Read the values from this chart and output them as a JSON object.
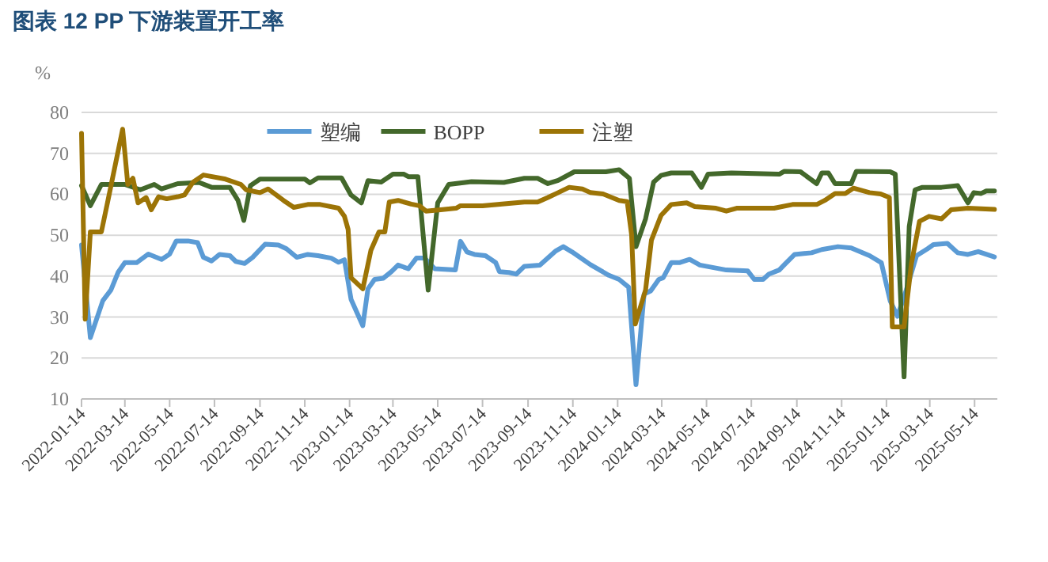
{
  "chart_data": {
    "type": "line",
    "title": "图表 12 PP 下游装置开工率",
    "ylabel": "%",
    "xlim": [
      "2022-01-14",
      "2025-06-14"
    ],
    "ylim": [
      10,
      80
    ],
    "yticks": [
      10,
      20,
      30,
      40,
      50,
      60,
      70,
      80
    ],
    "xticks": [
      {
        "value": "2022-01-14",
        "label": "2022-01-14"
      },
      {
        "value": "2022-03-14",
        "label": "2022-03-14"
      },
      {
        "value": "2022-05-14",
        "label": "2022-05-14"
      },
      {
        "value": "2022-07-14",
        "label": "2022-07-14"
      },
      {
        "value": "2022-09-14",
        "label": "2022-09-14"
      },
      {
        "value": "2022-11-14",
        "label": "2022-11-14"
      },
      {
        "value": "2023-01-14",
        "label": "2023-01-14"
      },
      {
        "value": "2023-03-14",
        "label": "2023-03-14"
      },
      {
        "value": "2023-05-14",
        "label": "2023-05-14"
      },
      {
        "value": "2023-07-14",
        "label": "2023-07-14"
      },
      {
        "value": "2023-09-14",
        "label": "2023-09-14"
      },
      {
        "value": "2023-11-14",
        "label": "2023-11-14"
      },
      {
        "value": "2024-01-14",
        "label": "2024-01-14"
      },
      {
        "value": "2024-03-14",
        "label": "2024-03-14"
      },
      {
        "value": "2024-05-14",
        "label": "2024-05-14"
      },
      {
        "value": "2024-07-14",
        "label": "2024-07-14"
      },
      {
        "value": "2024-09-14",
        "label": "2024-09-14"
      },
      {
        "value": "2024-11-14",
        "label": "2024-11-14"
      },
      {
        "value": "2025-01-14",
        "label": "2025-01-14"
      },
      {
        "value": "2025-03-14",
        "label": "2025-03-14"
      },
      {
        "value": "2025-05-14",
        "label": "2025-05-14"
      }
    ],
    "grid": "y",
    "legend": "top",
    "line_style": "solid",
    "series": [
      {
        "name": "塑编",
        "color": "#5b9bd5",
        "x": [
          "2022-01-14",
          "2022-01-26",
          "2022-02-12",
          "2022-02-23",
          "2022-03-05",
          "2022-03-14",
          "2022-03-30",
          "2022-04-15",
          "2022-05-03",
          "2022-05-14",
          "2022-05-23",
          "2022-06-08",
          "2022-06-21",
          "2022-06-29",
          "2022-07-10",
          "2022-07-21",
          "2022-08-04",
          "2022-08-12",
          "2022-08-24",
          "2022-09-04",
          "2022-09-21",
          "2022-10-09",
          "2022-10-20",
          "2022-11-03",
          "2022-11-18",
          "2022-12-02",
          "2022-12-20",
          "2022-12-30",
          "2023-01-07",
          "2023-01-16",
          "2023-02-01",
          "2023-02-08",
          "2023-02-17",
          "2023-03-01",
          "2023-03-12",
          "2023-03-21",
          "2023-04-04",
          "2023-04-15",
          "2023-04-26",
          "2023-05-10",
          "2023-06-07",
          "2023-06-14",
          "2023-06-23",
          "2023-07-03",
          "2023-07-18",
          "2023-08-01",
          "2023-08-06",
          "2023-08-19",
          "2023-08-29",
          "2023-09-09",
          "2023-09-30",
          "2023-10-22",
          "2023-11-01",
          "2023-11-13",
          "2023-12-08",
          "2024-01-02",
          "2024-01-16",
          "2024-01-29",
          "2024-02-08",
          "2024-02-19",
          "2024-02-28",
          "2024-03-10",
          "2024-03-16",
          "2024-03-27",
          "2024-04-07",
          "2024-04-21",
          "2024-05-05",
          "2024-06-10",
          "2024-07-09",
          "2024-07-18",
          "2024-07-30",
          "2024-08-07",
          "2024-08-21",
          "2024-08-28",
          "2024-09-11",
          "2024-10-04",
          "2024-10-18",
          "2024-11-09",
          "2024-11-27",
          "2024-12-22",
          "2025-01-07",
          "2025-01-19",
          "2025-01-29",
          "2025-02-10",
          "2025-02-24",
          "2025-03-11",
          "2025-03-19",
          "2025-04-07",
          "2025-04-21",
          "2025-05-05",
          "2025-05-19",
          "2025-06-10"
        ],
        "values": [
          47.6,
          25.0,
          34.0,
          36.6,
          41.0,
          43.3,
          43.3,
          45.4,
          44.1,
          45.4,
          48.6,
          48.6,
          48.2,
          44.6,
          43.7,
          45.3,
          45.0,
          43.6,
          43.1,
          44.6,
          47.8,
          47.6,
          46.7,
          44.6,
          45.3,
          45.0,
          44.4,
          43.4,
          44.0,
          34.3,
          27.9,
          36.9,
          39.2,
          39.5,
          41.1,
          42.7,
          41.8,
          44.4,
          44.4,
          41.8,
          41.5,
          48.5,
          45.9,
          45.3,
          45.0,
          43.3,
          41.1,
          40.9,
          40.5,
          42.4,
          42.7,
          46.2,
          47.2,
          45.9,
          42.8,
          40.2,
          39.2,
          37.3,
          13.5,
          35.6,
          36.4,
          39.2,
          39.6,
          43.3,
          43.3,
          44.1,
          42.7,
          41.5,
          41.3,
          39.2,
          39.2,
          40.5,
          41.5,
          42.8,
          45.3,
          45.7,
          46.5,
          47.2,
          46.9,
          45.0,
          43.3,
          34.0,
          30.2,
          36.6,
          45.0,
          46.7,
          47.7,
          48.0,
          45.7,
          45.3,
          46.0,
          44.7
        ]
      },
      {
        "name": "BOPP",
        "color": "#43682b",
        "x": [
          "2022-01-14",
          "2022-01-26",
          "2022-02-10",
          "2022-03-14",
          "2022-04-04",
          "2022-04-23",
          "2022-05-03",
          "2022-05-25",
          "2022-06-23",
          "2022-07-10",
          "2022-08-04",
          "2022-08-15",
          "2022-08-23",
          "2022-09-01",
          "2022-09-14",
          "2022-11-14",
          "2022-11-21",
          "2022-12-02",
          "2023-01-03",
          "2023-01-16",
          "2023-01-30",
          "2023-02-08",
          "2023-02-26",
          "2023-03-14",
          "2023-03-29",
          "2023-04-04",
          "2023-04-17",
          "2023-05-01",
          "2023-05-14",
          "2023-05-29",
          "2023-06-29",
          "2023-08-12",
          "2023-09-09",
          "2023-09-27",
          "2023-10-11",
          "2023-10-25",
          "2023-11-16",
          "2023-12-29",
          "2024-01-16",
          "2024-01-30",
          "2024-02-08",
          "2024-02-21",
          "2024-03-03",
          "2024-03-13",
          "2024-03-27",
          "2024-04-24",
          "2024-05-07",
          "2024-05-16",
          "2024-06-17",
          "2024-08-21",
          "2024-08-28",
          "2024-09-19",
          "2024-10-11",
          "2024-10-18",
          "2024-10-27",
          "2024-11-05",
          "2024-11-27",
          "2024-12-04",
          "2025-01-19",
          "2025-01-26",
          "2025-02-07",
          "2025-02-14",
          "2025-02-22",
          "2025-03-04",
          "2025-03-30",
          "2025-04-21",
          "2025-05-05",
          "2025-05-13",
          "2025-05-23",
          "2025-05-30",
          "2025-06-10"
        ],
        "values": [
          62.1,
          57.2,
          62.4,
          62.4,
          61.1,
          62.4,
          61.3,
          62.6,
          62.9,
          61.7,
          61.7,
          58.5,
          53.6,
          62.1,
          63.7,
          63.7,
          62.8,
          64.0,
          64.0,
          59.8,
          57.9,
          63.3,
          63.0,
          64.9,
          64.9,
          64.3,
          64.3,
          36.6,
          57.9,
          62.4,
          63.1,
          62.9,
          63.9,
          63.9,
          62.6,
          63.4,
          65.5,
          65.5,
          66.0,
          63.9,
          47.2,
          54.0,
          63.0,
          64.6,
          65.2,
          65.2,
          61.7,
          64.9,
          65.2,
          64.9,
          65.6,
          65.5,
          62.6,
          65.2,
          65.2,
          62.6,
          62.6,
          65.6,
          65.5,
          64.9,
          15.4,
          52.1,
          61.1,
          61.7,
          61.7,
          62.1,
          57.9,
          60.4,
          60.2,
          60.8,
          60.8
        ]
      },
      {
        "name": "注塑",
        "color": "#9c7406",
        "x": [
          "2022-01-14",
          "2022-01-19",
          "2022-01-26",
          "2022-02-10",
          "2022-02-19",
          "2022-03-11",
          "2022-03-18",
          "2022-03-25",
          "2022-04-01",
          "2022-04-12",
          "2022-04-19",
          "2022-04-29",
          "2022-05-10",
          "2022-05-25",
          "2022-06-03",
          "2022-06-15",
          "2022-06-29",
          "2022-07-29",
          "2022-08-19",
          "2022-08-26",
          "2022-09-14",
          "2022-09-25",
          "2022-10-16",
          "2022-10-30",
          "2022-11-18",
          "2022-12-05",
          "2022-12-30",
          "2023-01-07",
          "2023-01-12",
          "2023-01-16",
          "2023-02-01",
          "2023-02-12",
          "2023-02-23",
          "2023-03-03",
          "2023-03-09",
          "2023-03-21",
          "2023-04-08",
          "2023-04-19",
          "2023-04-28",
          "2023-05-18",
          "2023-06-08",
          "2023-06-14",
          "2023-07-14",
          "2023-09-09",
          "2023-09-27",
          "2023-10-11",
          "2023-10-25",
          "2023-11-09",
          "2023-11-27",
          "2023-12-08",
          "2023-12-25",
          "2024-01-16",
          "2024-01-27",
          "2024-02-02",
          "2024-02-07",
          "2024-02-21",
          "2024-02-29",
          "2024-03-13",
          "2024-03-27",
          "2024-04-17",
          "2024-04-28",
          "2024-05-27",
          "2024-06-10",
          "2024-06-24",
          "2024-08-14",
          "2024-09-08",
          "2024-10-11",
          "2024-10-22",
          "2024-11-05",
          "2024-11-19",
          "2024-11-30",
          "2024-12-22",
          "2025-01-06",
          "2025-01-18",
          "2025-01-22",
          "2025-02-07",
          "2025-02-17",
          "2025-02-28",
          "2025-03-13",
          "2025-03-30",
          "2025-04-12",
          "2025-05-05",
          "2025-06-10"
        ],
        "values": [
          74.9,
          29.5,
          50.8,
          50.8,
          58.5,
          75.9,
          62.4,
          63.9,
          57.9,
          59.2,
          56.2,
          59.4,
          58.9,
          59.4,
          59.8,
          63.0,
          64.7,
          63.7,
          62.4,
          61.1,
          60.4,
          61.3,
          58.5,
          56.8,
          57.5,
          57.5,
          56.6,
          54.6,
          51.4,
          39.6,
          36.9,
          46.3,
          50.8,
          50.8,
          58.1,
          58.5,
          57.6,
          57.2,
          55.9,
          56.2,
          56.6,
          57.2,
          57.2,
          58.1,
          58.1,
          59.2,
          60.4,
          61.7,
          61.3,
          60.4,
          60.1,
          58.5,
          58.2,
          50.1,
          28.3,
          36.6,
          48.8,
          54.8,
          57.5,
          57.9,
          57.0,
          56.6,
          55.9,
          56.6,
          56.6,
          57.5,
          57.5,
          58.5,
          60.2,
          60.2,
          61.5,
          60.4,
          60.1,
          59.2,
          27.6,
          27.6,
          43.1,
          53.4,
          54.6,
          54.0,
          56.2,
          56.6,
          56.3
        ]
      }
    ]
  }
}
